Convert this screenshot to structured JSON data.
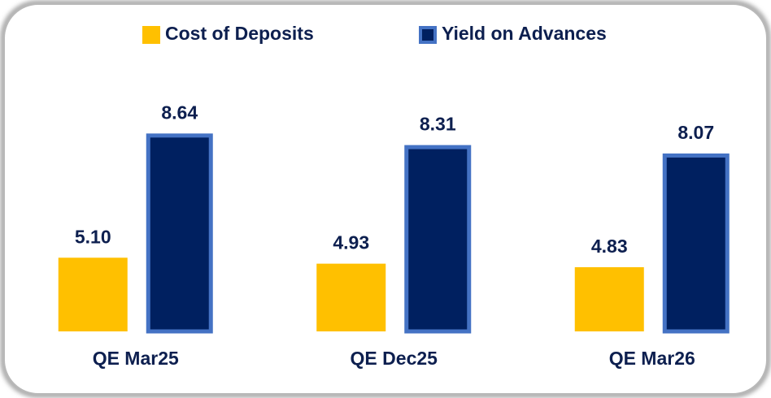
{
  "chart_data": {
    "type": "bar",
    "categories": [
      "QE Mar25",
      "QE Dec25",
      "QE Mar26"
    ],
    "series": [
      {
        "name": "Cost of Deposits",
        "color": "#ffc000",
        "values": [
          5.1,
          4.93,
          4.83
        ],
        "value_labels": [
          "5.10",
          "4.93",
          "4.83"
        ]
      },
      {
        "name": "Yield on Advances",
        "color": "#002060",
        "edgecolor": "#4472c4",
        "values": [
          8.64,
          8.31,
          8.07
        ],
        "value_labels": [
          "8.64",
          "8.31",
          "8.07"
        ]
      }
    ],
    "ylim": [
      3,
      10
    ],
    "legend": "top"
  }
}
